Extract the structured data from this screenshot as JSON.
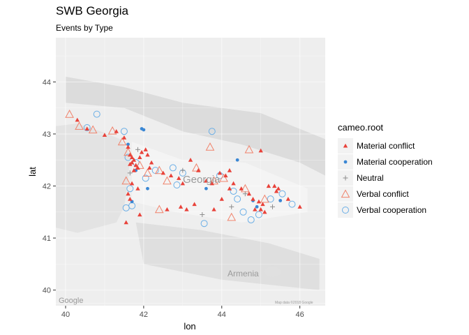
{
  "chart_data": {
    "type": "scatter",
    "title": "SWB Georgia",
    "subtitle": "Events by Type",
    "xlabel": "lon",
    "ylabel": "lat",
    "xlim": [
      39.75,
      46.65
    ],
    "ylim": [
      39.7,
      44.85
    ],
    "xticks": [
      40,
      42,
      44,
      46
    ],
    "yticks": [
      40,
      41,
      42,
      43,
      44
    ],
    "grid": true,
    "legend_title": "cameo.root",
    "legend_position": "right",
    "series": [
      {
        "name": "Material conflict",
        "color": "#e8423a",
        "marker": "filled-triangle",
        "points": [
          [
            40.3,
            43.27
          ],
          [
            40.55,
            43.1
          ],
          [
            41.0,
            42.98
          ],
          [
            41.3,
            43.05
          ],
          [
            41.5,
            42.93
          ],
          [
            41.6,
            42.75
          ],
          [
            41.65,
            42.6
          ],
          [
            41.7,
            42.55
          ],
          [
            41.75,
            42.5
          ],
          [
            41.7,
            42.45
          ],
          [
            41.8,
            42.4
          ],
          [
            41.85,
            42.35
          ],
          [
            41.65,
            42.42
          ],
          [
            41.9,
            42.55
          ],
          [
            41.95,
            42.65
          ],
          [
            42.05,
            42.7
          ],
          [
            42.1,
            42.6
          ],
          [
            42.2,
            42.45
          ],
          [
            41.7,
            42.05
          ],
          [
            41.85,
            41.95
          ],
          [
            41.6,
            41.85
          ],
          [
            41.65,
            41.75
          ],
          [
            42.15,
            42.35
          ],
          [
            42.5,
            42.25
          ],
          [
            42.7,
            42.2
          ],
          [
            42.9,
            42.15
          ],
          [
            43.0,
            42.05
          ],
          [
            43.2,
            42.5
          ],
          [
            43.4,
            42.3
          ],
          [
            43.6,
            42.1
          ],
          [
            43.75,
            42.05
          ],
          [
            43.95,
            42.25
          ],
          [
            44.1,
            42.2
          ],
          [
            44.3,
            42.05
          ],
          [
            44.5,
            41.95
          ],
          [
            44.7,
            41.85
          ],
          [
            44.8,
            41.75
          ],
          [
            44.95,
            41.7
          ],
          [
            45.05,
            41.65
          ],
          [
            45.0,
            41.55
          ],
          [
            45.1,
            41.5
          ],
          [
            44.85,
            41.55
          ],
          [
            45.0,
            42.68
          ],
          [
            45.2,
            42.0
          ],
          [
            45.35,
            42.0
          ],
          [
            45.45,
            41.95
          ],
          [
            45.7,
            41.75
          ],
          [
            46.0,
            41.6
          ],
          [
            44.2,
            41.95
          ],
          [
            43.8,
            41.55
          ],
          [
            43.1,
            41.55
          ],
          [
            42.95,
            41.6
          ],
          [
            42.6,
            41.55
          ],
          [
            41.9,
            41.45
          ],
          [
            41.55,
            41.3
          ],
          [
            43.3,
            41.65
          ],
          [
            44.0,
            41.75
          ],
          [
            44.2,
            42.3
          ],
          [
            45.4,
            41.9
          ],
          [
            41.75,
            42.3
          ]
        ]
      },
      {
        "name": "Material cooperation",
        "color": "#3a87d4",
        "marker": "filled-circle",
        "points": [
          [
            41.6,
            42.8
          ],
          [
            41.95,
            43.1
          ],
          [
            42.0,
            43.08
          ],
          [
            41.8,
            42.3
          ],
          [
            41.7,
            41.7
          ],
          [
            42.1,
            41.95
          ],
          [
            43.6,
            41.95
          ],
          [
            44.8,
            41.72
          ],
          [
            45.5,
            41.72
          ],
          [
            44.4,
            42.5
          ],
          [
            44.9,
            41.6
          ]
        ]
      },
      {
        "name": "Neutral",
        "color": "#8c8c8c",
        "marker": "plus",
        "points": [
          [
            41.65,
            42.25
          ],
          [
            41.85,
            42.7
          ],
          [
            43.0,
            42.3
          ],
          [
            43.5,
            41.45
          ],
          [
            44.25,
            41.6
          ],
          [
            44.6,
            41.85
          ],
          [
            45.3,
            41.6
          ]
        ]
      },
      {
        "name": "Verbal conflict",
        "color": "#f0836c",
        "marker": "open-triangle",
        "points": [
          [
            40.1,
            43.38
          ],
          [
            40.35,
            43.15
          ],
          [
            40.7,
            43.08
          ],
          [
            41.2,
            43.06
          ],
          [
            41.45,
            42.85
          ],
          [
            41.6,
            42.65
          ],
          [
            41.9,
            42.4
          ],
          [
            42.1,
            42.25
          ],
          [
            42.4,
            42.3
          ],
          [
            42.6,
            42.1
          ],
          [
            43.35,
            42.35
          ],
          [
            43.7,
            42.75
          ],
          [
            44.05,
            42.15
          ],
          [
            44.7,
            42.7
          ],
          [
            44.6,
            41.95
          ],
          [
            45.1,
            41.75
          ],
          [
            44.25,
            41.4
          ],
          [
            42.4,
            41.55
          ],
          [
            41.55,
            42.1
          ],
          [
            43.8,
            42.1
          ]
        ]
      },
      {
        "name": "Verbal cooperation",
        "color": "#6aaee6",
        "marker": "open-circle",
        "points": [
          [
            40.55,
            43.12
          ],
          [
            40.8,
            43.38
          ],
          [
            41.5,
            43.05
          ],
          [
            41.6,
            42.55
          ],
          [
            41.55,
            41.58
          ],
          [
            41.65,
            41.95
          ],
          [
            41.8,
            42.45
          ],
          [
            42.05,
            42.15
          ],
          [
            42.3,
            42.3
          ],
          [
            42.75,
            42.35
          ],
          [
            43.0,
            42.25
          ],
          [
            43.75,
            43.05
          ],
          [
            43.95,
            42.2
          ],
          [
            44.3,
            41.9
          ],
          [
            44.4,
            41.75
          ],
          [
            44.55,
            41.5
          ],
          [
            45.25,
            41.75
          ],
          [
            45.55,
            41.85
          ],
          [
            45.8,
            41.65
          ],
          [
            43.55,
            41.28
          ],
          [
            44.75,
            41.35
          ],
          [
            42.85,
            42.02
          ],
          [
            41.7,
            41.62
          ],
          [
            44.95,
            41.45
          ]
        ]
      }
    ]
  },
  "map_labels": {
    "georgia": "Georgia",
    "armenia": "Armenia",
    "google": "Google",
    "copyright": "Map data ©2018 Google"
  }
}
